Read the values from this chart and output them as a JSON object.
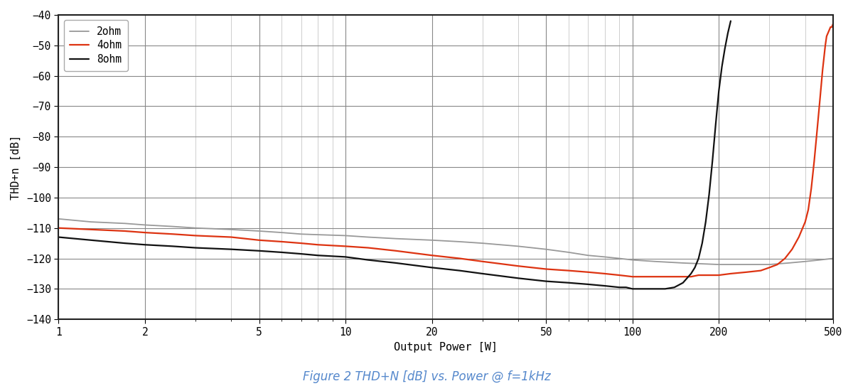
{
  "title": "Figure 2 THD+N [dB] vs. Power @ f=1kHz",
  "xlabel": "Output Power [W]",
  "ylabel": "THD+n [dB]",
  "xlim": [
    1,
    500
  ],
  "ylim": [
    -140,
    -40
  ],
  "yticks": [
    -140,
    -130,
    -120,
    -110,
    -100,
    -90,
    -80,
    -70,
    -60,
    -50,
    -40
  ],
  "xticks": [
    1,
    2,
    5,
    10,
    20,
    50,
    100,
    200,
    500
  ],
  "xtick_labels": [
    "1",
    "2",
    "5",
    "10",
    "20",
    "50",
    "100",
    "200",
    "500"
  ],
  "legend": [
    "2ohm",
    "4ohm",
    "8ohm"
  ],
  "colors": {
    "2ohm": "#999999",
    "4ohm": "#dd3311",
    "8ohm": "#111111"
  },
  "title_color": "#5588cc",
  "background_color": "#ffffff",
  "grid_major_color": "#888888",
  "grid_minor_color": "#bbbbbb",
  "series": {
    "2ohm": {
      "x": [
        1,
        1.3,
        1.7,
        2,
        2.5,
        3,
        4,
        5,
        6,
        7,
        8,
        10,
        12,
        15,
        20,
        25,
        30,
        40,
        50,
        60,
        70,
        80,
        90,
        100,
        120,
        150,
        200,
        250,
        300,
        350,
        400,
        450,
        500
      ],
      "y": [
        -107,
        -108,
        -108.5,
        -109,
        -109.5,
        -110,
        -110.5,
        -111,
        -111.5,
        -112,
        -112.2,
        -112.5,
        -113,
        -113.5,
        -114,
        -114.5,
        -115,
        -116,
        -117,
        -118,
        -119,
        -119.5,
        -120,
        -120.5,
        -121,
        -121.5,
        -122,
        -122,
        -122,
        -121.5,
        -121,
        -120.5,
        -120
      ]
    },
    "4ohm": {
      "x": [
        1,
        1.3,
        1.7,
        2,
        2.5,
        3,
        4,
        5,
        6,
        7,
        8,
        10,
        12,
        15,
        20,
        25,
        30,
        40,
        50,
        60,
        70,
        80,
        90,
        100,
        110,
        120,
        130,
        140,
        150,
        160,
        170,
        180,
        190,
        200,
        220,
        250,
        280,
        300,
        320,
        340,
        360,
        380,
        400,
        410,
        420,
        430,
        440,
        450,
        460,
        465,
        470,
        475,
        480,
        485,
        490,
        495,
        500
      ],
      "y": [
        -110,
        -110.5,
        -111,
        -111.5,
        -112,
        -112.5,
        -113,
        -114,
        -114.5,
        -115,
        -115.5,
        -116,
        -116.5,
        -117.5,
        -119,
        -120,
        -121,
        -122.5,
        -123.5,
        -124,
        -124.5,
        -125,
        -125.5,
        -126,
        -126,
        -126,
        -126,
        -126,
        -126,
        -126,
        -125.5,
        -125.5,
        -125.5,
        -125.5,
        -125,
        -124.5,
        -124,
        -123,
        -122,
        -120,
        -117,
        -113,
        -108,
        -104,
        -97,
        -88,
        -78,
        -68,
        -58,
        -54,
        -50,
        -47,
        -46,
        -45,
        -44,
        -44,
        -43
      ]
    },
    "8ohm": {
      "x": [
        1,
        1.3,
        1.7,
        2,
        2.5,
        3,
        4,
        5,
        6,
        7,
        8,
        10,
        12,
        15,
        20,
        25,
        30,
        40,
        50,
        60,
        70,
        80,
        90,
        95,
        100,
        105,
        110,
        115,
        120,
        130,
        140,
        150,
        160,
        165,
        170,
        175,
        180,
        185,
        190,
        195,
        200,
        205,
        210,
        215,
        220
      ],
      "y": [
        -113,
        -114,
        -115,
        -115.5,
        -116,
        -116.5,
        -117,
        -117.5,
        -118,
        -118.5,
        -119,
        -119.5,
        -120.5,
        -121.5,
        -123,
        -124,
        -125,
        -126.5,
        -127.5,
        -128,
        -128.5,
        -129,
        -129.5,
        -129.5,
        -130,
        -130,
        -130,
        -130,
        -130,
        -130,
        -129.5,
        -128,
        -125,
        -123,
        -120,
        -115,
        -108,
        -99,
        -88,
        -76,
        -65,
        -57,
        -51,
        -46,
        -42
      ]
    }
  }
}
